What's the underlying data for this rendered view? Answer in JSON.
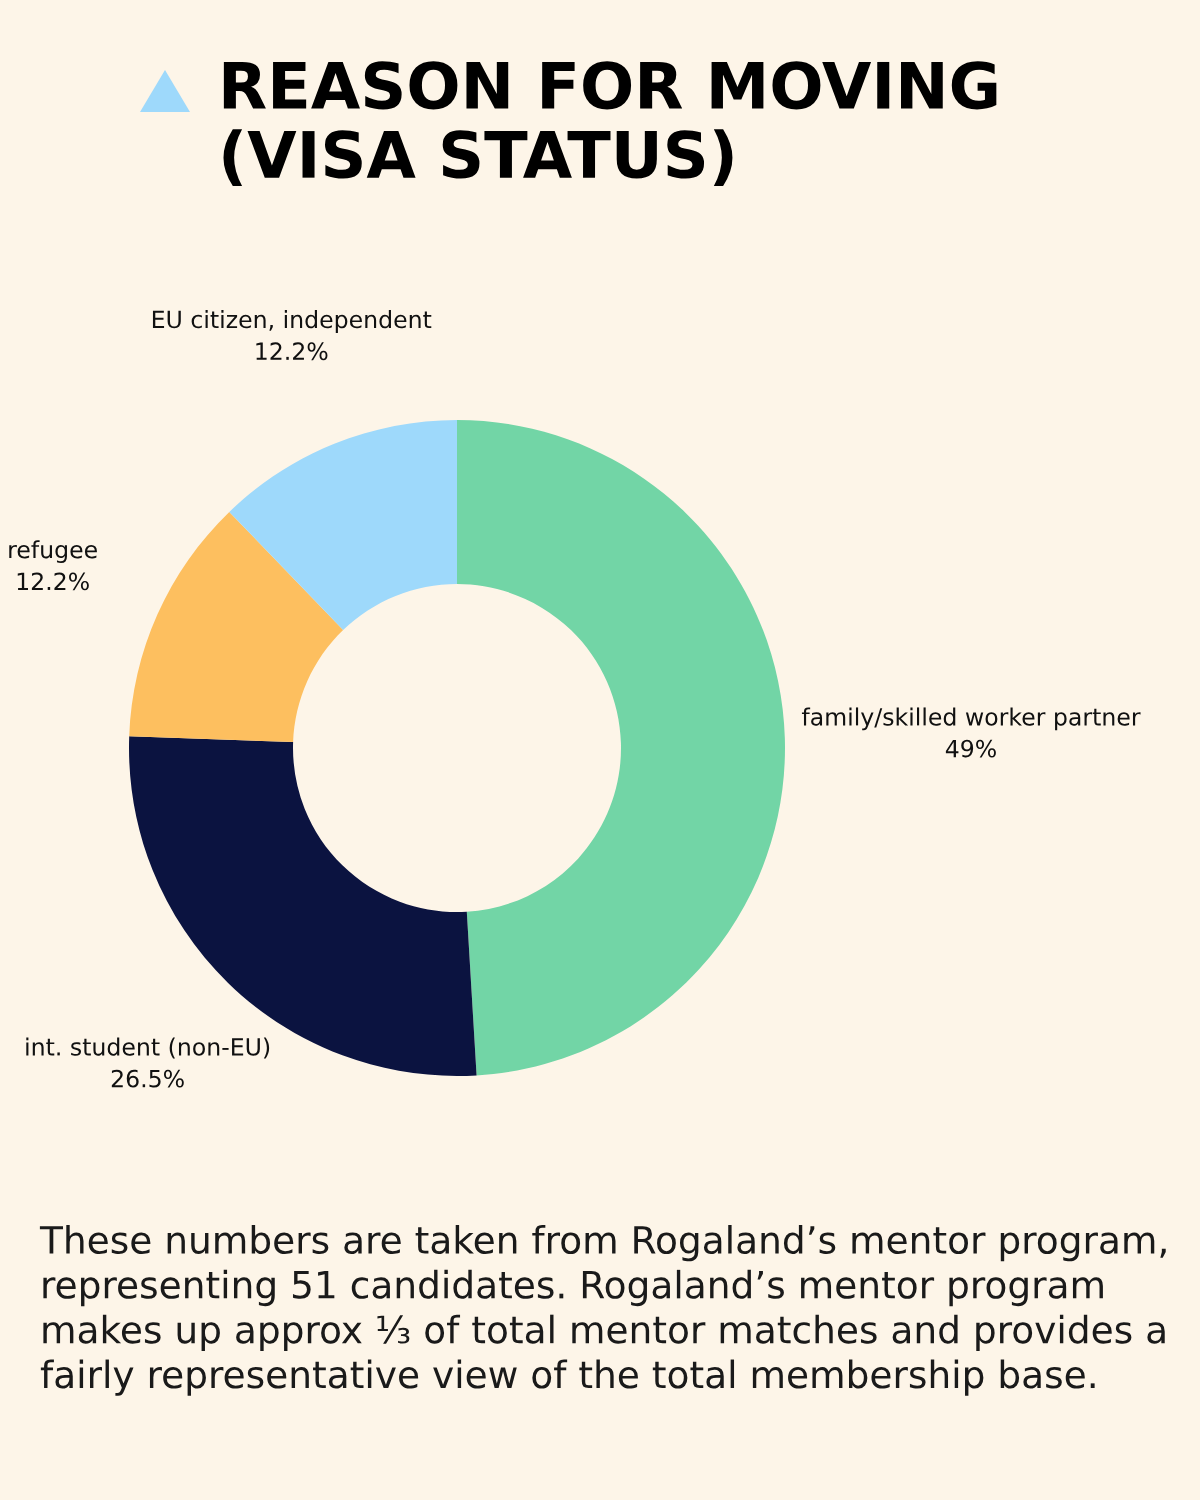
{
  "chart_data": {
    "type": "donut",
    "title": "REASON FOR MOVING\n(VISA STATUS)",
    "categories": [
      "family/skilled worker partner",
      "int. student (non-EU)",
      "refugee",
      "EU citizen, independent"
    ],
    "values": [
      49,
      26.5,
      12.2,
      12.2
    ],
    "value_labels": [
      "49%",
      "26.5%",
      "12.2%",
      "12.2%"
    ],
    "colors": [
      "#72d5a6",
      "#0b1340",
      "#fdbf5f",
      "#9ed9fb"
    ],
    "annotations": [
      "These numbers are taken from Rogaland’s mentor program, representing 51 candidates. Rogaland’s mentor program makes up approx ⅓ of total mentor matches and provides a fairly representative view of the total membership base."
    ]
  }
}
